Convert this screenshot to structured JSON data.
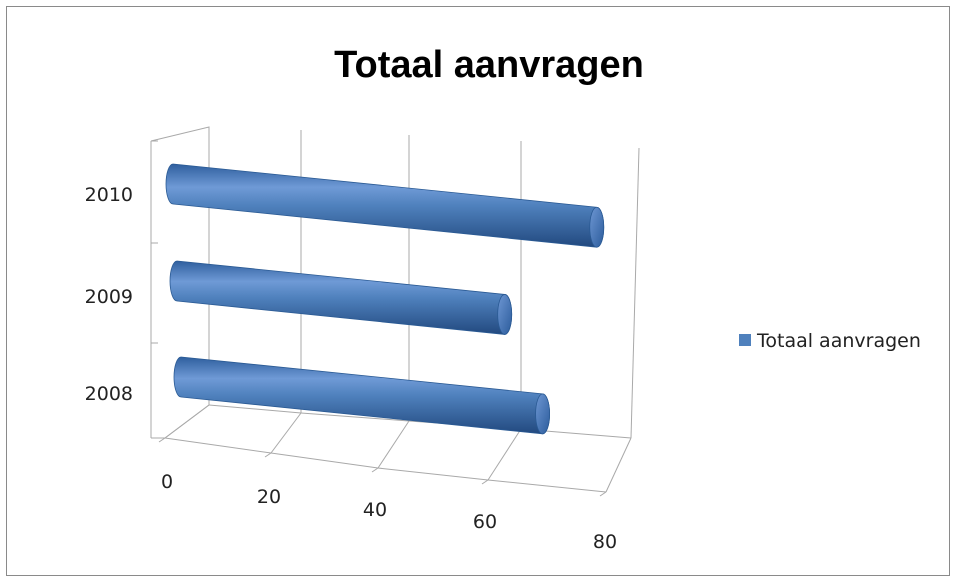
{
  "chart_data": {
    "type": "bar",
    "orientation": "horizontal",
    "style": "3d-cylinder",
    "title": "Totaal aanvragen",
    "categories": [
      "2008",
      "2009",
      "2010"
    ],
    "series": [
      {
        "name": "Totaal aanvragen",
        "values": [
          64,
          58,
          75
        ],
        "color": "#4f81bd"
      }
    ],
    "xlim": [
      0,
      80
    ],
    "xticks": [
      "0",
      "20",
      "40",
      "60",
      "80"
    ],
    "grid": true,
    "legend_position": "right"
  }
}
